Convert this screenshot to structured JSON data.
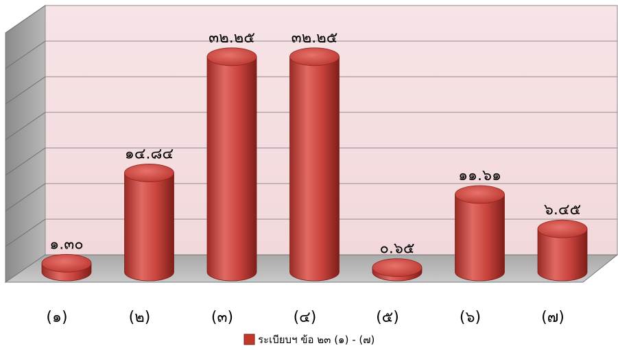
{
  "chart_data": {
    "type": "bar",
    "categories": [
      "(๑)",
      "(๒)",
      "(๓)",
      "(๔)",
      "(๕)",
      "(๖)",
      "(๗)"
    ],
    "series": [
      {
        "name": "ระเบียบฯ ข้อ ๒๓ (๑) - (๗)",
        "values": [
          1.3,
          14.84,
          32.25,
          32.25,
          0.65,
          11.61,
          6.45
        ],
        "labels": [
          "๑.๓๐",
          "๑๔.๘๔",
          "๓๒.๒๕",
          "๓๒.๒๕",
          "๐.๖๕",
          "๑๑.๖๑",
          "๖.๔๕"
        ],
        "color": "#c0392b"
      }
    ],
    "ylim": [
      0,
      35
    ],
    "grid": true,
    "legend": "bottom-center",
    "style": "3d-cylinder"
  }
}
